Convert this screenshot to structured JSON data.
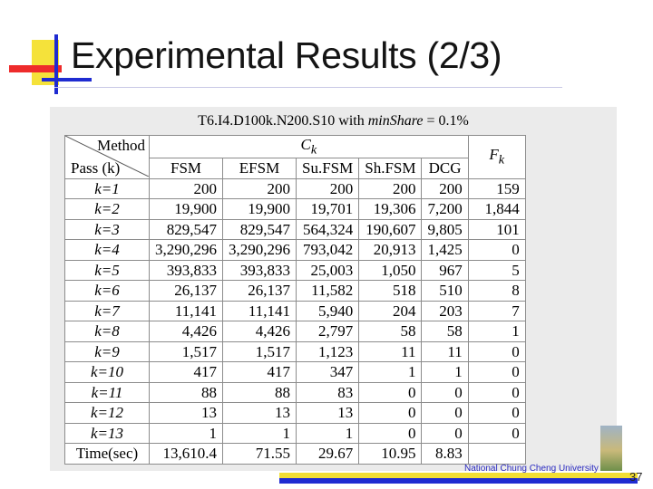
{
  "slide": {
    "title": "Experimental Results (2/3)",
    "page_number": "37",
    "footer_logo": "National Chung Cheng University"
  },
  "table": {
    "caption_prefix": "T6.I4.D100k.N200.S10 with ",
    "caption_param": "minShare",
    "caption_suffix": " = 0.1%",
    "corner_top": "Method",
    "corner_bottom": "Pass (k)",
    "group_header": "Ck",
    "last_header": "Fk",
    "columns": [
      "FSM",
      "EFSM",
      "Su.FSM",
      "Sh.FSM",
      "DCG"
    ],
    "rows": [
      {
        "pass": "k=1",
        "values": [
          "200",
          "200",
          "200",
          "200",
          "200",
          "159"
        ]
      },
      {
        "pass": "k=2",
        "values": [
          "19,900",
          "19,900",
          "19,701",
          "19,306",
          "7,200",
          "1,844"
        ]
      },
      {
        "pass": "k=3",
        "values": [
          "829,547",
          "829,547",
          "564,324",
          "190,607",
          "9,805",
          "101"
        ]
      },
      {
        "pass": "k=4",
        "values": [
          "3,290,296",
          "3,290,296",
          "793,042",
          "20,913",
          "1,425",
          "0"
        ]
      },
      {
        "pass": "k=5",
        "values": [
          "393,833",
          "393,833",
          "25,003",
          "1,050",
          "967",
          "5"
        ]
      },
      {
        "pass": "k=6",
        "values": [
          "26,137",
          "26,137",
          "11,582",
          "518",
          "510",
          "8"
        ]
      },
      {
        "pass": "k=7",
        "values": [
          "11,141",
          "11,141",
          "5,940",
          "204",
          "203",
          "7"
        ]
      },
      {
        "pass": "k=8",
        "values": [
          "4,426",
          "4,426",
          "2,797",
          "58",
          "58",
          "1"
        ]
      },
      {
        "pass": "k=9",
        "values": [
          "1,517",
          "1,517",
          "1,123",
          "11",
          "11",
          "0"
        ]
      },
      {
        "pass": "k=10",
        "values": [
          "417",
          "417",
          "347",
          "1",
          "1",
          "0"
        ]
      },
      {
        "pass": "k=11",
        "values": [
          "88",
          "88",
          "83",
          "0",
          "0",
          "0"
        ]
      },
      {
        "pass": "k=12",
        "values": [
          "13",
          "13",
          "13",
          "0",
          "0",
          "0"
        ]
      },
      {
        "pass": "k=13",
        "values": [
          "1",
          "1",
          "1",
          "0",
          "0",
          "0"
        ]
      }
    ],
    "time_label": "Time(sec)",
    "time_values": [
      "13,610.4",
      "71.55",
      "29.67",
      "10.95",
      "8.83",
      ""
    ]
  }
}
